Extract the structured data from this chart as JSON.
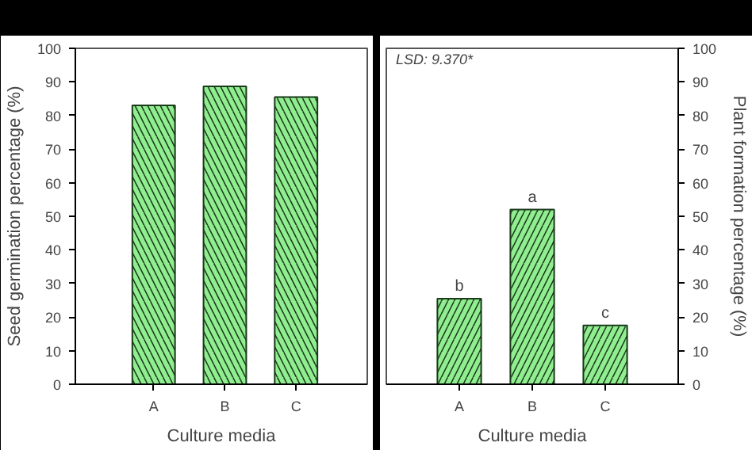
{
  "chart_data": [
    {
      "type": "bar",
      "categories": [
        "A",
        "B",
        "C"
      ],
      "values": [
        83,
        88.7,
        85.5
      ],
      "color": "#90ee90",
      "xlabel": "Culture media",
      "ylabel": "Seed germination percentage (%)",
      "ylim": [
        0,
        100
      ],
      "yticks": [
        0,
        10,
        20,
        30,
        40,
        50,
        60,
        70,
        80,
        90,
        100
      ],
      "grid": false
    },
    {
      "type": "bar",
      "categories": [
        "A",
        "B",
        "C"
      ],
      "series": [
        {
          "color": "#90ee90",
          "axis": "y2",
          "values": [
            25.5,
            52,
            17.5
          ]
        }
      ],
      "xlabel": "Culture media",
      "y2label": "Plant formation percentage (%)",
      "y2lim": [
        0,
        100
      ],
      "y2ticks": [
        0,
        10,
        20,
        30,
        40,
        50,
        60,
        70,
        80,
        90,
        100
      ],
      "grid": false,
      "annotations": [
        "LSD: 9.370*",
        "b",
        "a",
        "c"
      ]
    }
  ]
}
